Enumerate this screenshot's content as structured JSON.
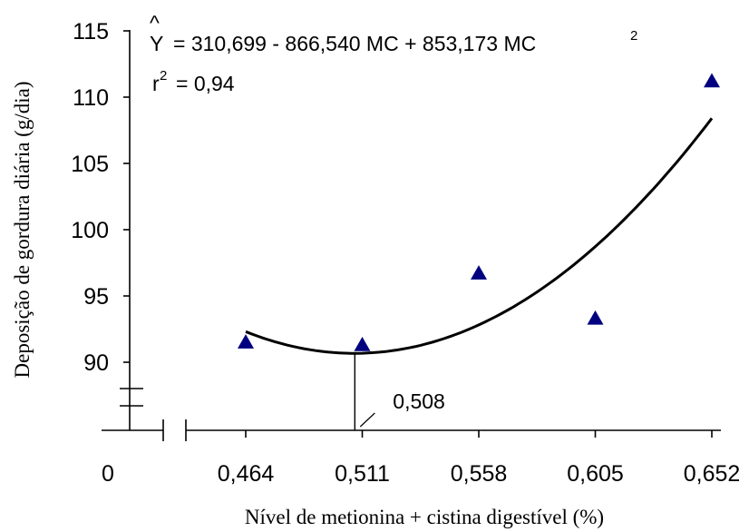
{
  "chart_data": {
    "type": "scatter",
    "xlabel": "Nível de metionina + cistina digestível (%)",
    "ylabel": "Deposição de gordura diária (g/dia)",
    "x_ticks": [
      "0",
      "0,464",
      "0,511",
      "0,558",
      "0,605",
      "0,652"
    ],
    "y_ticks": [
      "90",
      "95",
      "100",
      "105",
      "110",
      "115"
    ],
    "ylim": [
      85,
      115
    ],
    "xlim": [
      0.464,
      0.652
    ],
    "axis_break": true,
    "points": [
      {
        "x": 0.464,
        "y": 91.5
      },
      {
        "x": 0.511,
        "y": 91.3
      },
      {
        "x": 0.558,
        "y": 96.7
      },
      {
        "x": 0.605,
        "y": 93.3
      },
      {
        "x": 0.652,
        "y": 111.2
      }
    ],
    "marker_color": "#000080",
    "curve": {
      "a": 310.699,
      "b": -866.54,
      "c": 853.173,
      "x_start": 0.464,
      "x_end": 0.652
    },
    "equation": {
      "yhat": "Y",
      "hat": "^",
      "text": "= 310,699 - 866,540 MC + 853,173 MC",
      "exp": "2"
    },
    "r2": {
      "r": "r",
      "exp": "2",
      "text": "= 0,94"
    },
    "optimum": {
      "x": 0.508,
      "label": "0,508"
    }
  }
}
